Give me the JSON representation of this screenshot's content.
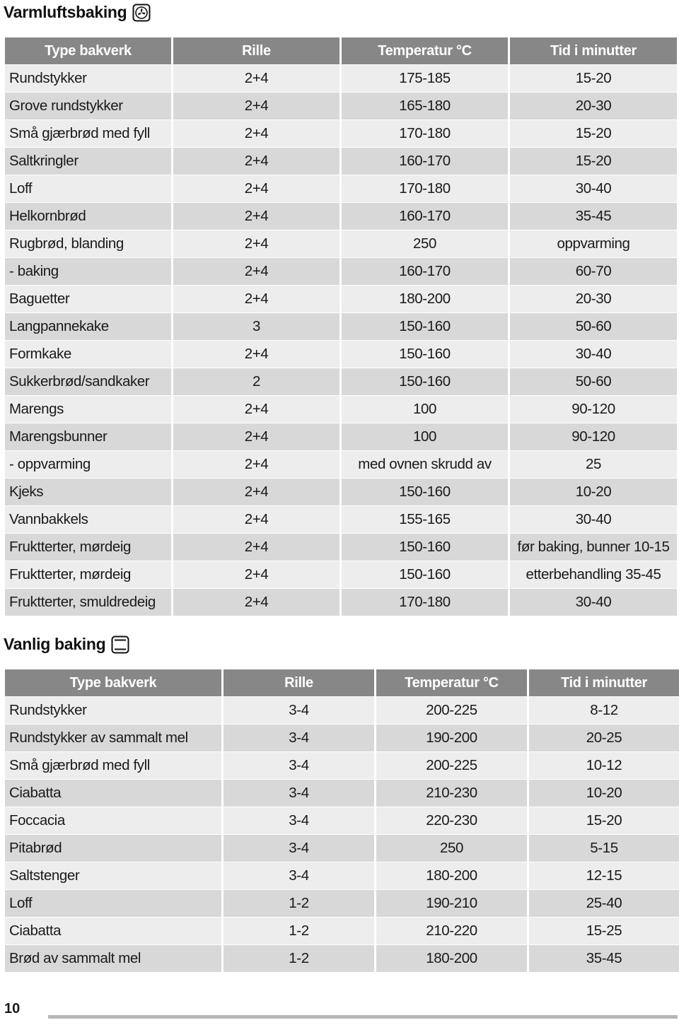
{
  "section1": {
    "title": "Varmluftsbaking",
    "icon": "fan-oven-icon",
    "headers": [
      "Type bakverk",
      "Rille",
      "Temperatur °C",
      "Tid i minutter"
    ],
    "rows": [
      [
        "Rundstykker",
        "2+4",
        "175-185",
        "15-20"
      ],
      [
        "Grove rundstykker",
        "2+4",
        "165-180",
        "20-30"
      ],
      [
        "Små gjærbrød med fyll",
        "2+4",
        "170-180",
        "15-20"
      ],
      [
        "Saltkringler",
        "2+4",
        "160-170",
        "15-20"
      ],
      [
        "Loff",
        "2+4",
        "170-180",
        "30-40"
      ],
      [
        "Helkornbrød",
        "2+4",
        "160-170",
        "35-45"
      ],
      [
        "Rugbrød, blanding",
        "2+4",
        "250",
        "oppvarming"
      ],
      [
        "- baking",
        "2+4",
        "160-170",
        "60-70"
      ],
      [
        "Baguetter",
        "2+4",
        "180-200",
        "20-30"
      ],
      [
        "Langpannekake",
        "3",
        "150-160",
        "50-60"
      ],
      [
        "Formkake",
        "2+4",
        "150-160",
        "30-40"
      ],
      [
        "Sukkerbrød/sandkaker",
        "2",
        "150-160",
        "50-60"
      ],
      [
        "Marengs",
        "2+4",
        "100",
        "90-120"
      ],
      [
        "Marengsbunner",
        "2+4",
        "100",
        "90-120"
      ],
      [
        "- oppvarming",
        "2+4",
        "med ovnen skrudd av",
        "25"
      ],
      [
        "Kjeks",
        "2+4",
        "150-160",
        "10-20"
      ],
      [
        "Vannbakkels",
        "2+4",
        "155-165",
        "30-40"
      ],
      [
        "Fruktterter, mørdeig",
        "2+4",
        "150-160",
        "før baking, bunner 10-15"
      ],
      [
        "Fruktterter, mørdeig",
        "2+4",
        "150-160",
        "etterbehandling 35-45"
      ],
      [
        "Fruktterter, smuldredeig",
        "2+4",
        "170-180",
        "30-40"
      ]
    ]
  },
  "section2": {
    "title": "Vanlig baking",
    "icon": "top-bottom-heat-icon",
    "headers": [
      "Type bakverk",
      "Rille",
      "Temperatur °C",
      "Tid i minutter"
    ],
    "rows": [
      [
        "Rundstykker",
        "3-4",
        "200-225",
        "8-12"
      ],
      [
        "Rundstykker av sammalt mel",
        "3-4",
        "190-200",
        "20-25"
      ],
      [
        "Små gjærbrød med fyll",
        "3-4",
        "200-225",
        "10-12"
      ],
      [
        "Ciabatta",
        "3-4",
        "210-230",
        "10-20"
      ],
      [
        "Foccacia",
        "3-4",
        "220-230",
        "15-20"
      ],
      [
        "Pitabrød",
        "3-4",
        "250",
        "5-15"
      ],
      [
        "Saltstenger",
        "3-4",
        "180-200",
        "12-15"
      ],
      [
        "Loff",
        "1-2",
        "190-210",
        "25-40"
      ],
      [
        "Ciabatta",
        "1-2",
        "210-220",
        "15-25"
      ],
      [
        "Brød av sammalt mel",
        "1-2",
        "180-200",
        "35-45"
      ]
    ]
  },
  "footer": {
    "page_number": "10"
  },
  "colors": {
    "header_bg": "#878787",
    "row_light": "#ededed",
    "row_dark": "#d8d8d8",
    "footer_bar": "#b7b7b7"
  }
}
